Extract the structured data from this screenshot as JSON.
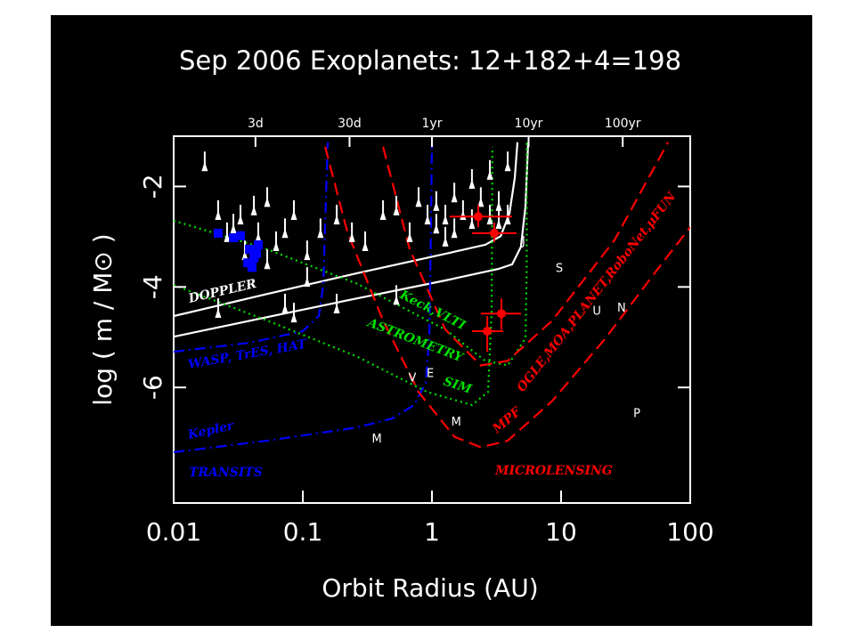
{
  "chart_data": {
    "type": "scatter",
    "title": "Sep 2006 Exoplanets: 12+182+4=198",
    "xlabel": "Orbit Radius (AU)",
    "ylabel": "log ( m / M⊙ )",
    "xscale": "log",
    "xlim": [
      0.01,
      100
    ],
    "ylim": [
      -8.3,
      -1
    ],
    "xticks": [
      0.01,
      0.1,
      1,
      10,
      100
    ],
    "yticks": [
      -2,
      -4,
      -6
    ],
    "x2ticks": [
      {
        "value": 0.043,
        "label": "3d"
      },
      {
        "value": 0.23,
        "label": "30d"
      },
      {
        "value": 1,
        "label": "1yr"
      },
      {
        "value": 5.6,
        "label": "10yr"
      },
      {
        "value": 30,
        "label": "100yr"
      }
    ],
    "curves": [
      {
        "color": "#ffffff",
        "style": "solid",
        "x": [
          0.01,
          0.053,
          0.26,
          1.27,
          2.59,
          3.4,
          3.98,
          4.38,
          4.59
        ],
        "y": [
          -4.58,
          -4.14,
          -3.73,
          -3.34,
          -3.16,
          -2.99,
          -2.54,
          -1.83,
          -1.12
        ]
      },
      {
        "color": "#ffffff",
        "style": "solid",
        "x": [
          0.01,
          0.053,
          0.26,
          1.27,
          3.29,
          4.18,
          4.89,
          5.3,
          5.56
        ],
        "y": [
          -4.99,
          -4.6,
          -4.23,
          -3.87,
          -3.64,
          -3.55,
          -3.2,
          -2.4,
          -1.12
        ]
      },
      {
        "color": "#0000ff",
        "style": "dashdot",
        "x": [
          0.01,
          0.0386,
          0.1,
          0.133,
          0.144,
          0.149,
          0.156
        ],
        "y": [
          -5.29,
          -5.11,
          -4.88,
          -4.58,
          -3.96,
          -2.72,
          -1.12
        ]
      },
      {
        "color": "#0000ff",
        "style": "dashdot",
        "x": [
          0.01,
          0.053,
          0.26,
          0.49,
          0.73,
          0.895,
          0.953,
          0.984,
          1
        ],
        "y": [
          -7.29,
          -7.06,
          -6.8,
          -6.62,
          -6.35,
          -5.91,
          -5.02,
          -2.72,
          -1.05
        ]
      },
      {
        "color": "#00e000",
        "style": "dotted",
        "x": [
          0.01,
          0.053,
          0.26,
          1.27,
          2.59,
          3.86,
          5.3,
          5.42,
          5.42
        ],
        "y": [
          -2.68,
          -3.25,
          -3.93,
          -4.85,
          -5.47,
          -5.56,
          -5.02,
          -3.61,
          -1.12
        ]
      },
      {
        "color": "#00e000",
        "style": "dotted",
        "x": [
          0.01,
          0.053,
          0.26,
          0.92,
          2.04,
          2.72,
          2.9,
          2.94
        ],
        "y": [
          -3.96,
          -4.67,
          -5.38,
          -6.09,
          -6.35,
          -6.09,
          -4.49,
          -1.21
        ]
      },
      {
        "color": "#ff0000",
        "style": "dashed",
        "x": [
          0.418,
          0.672,
          1.27,
          2.39,
          3.86,
          8.53,
          25.9,
          67.3
        ],
        "y": [
          -1.21,
          -3.25,
          -4.85,
          -5.56,
          -5.47,
          -4.67,
          -3.07,
          -1.12
        ]
      },
      {
        "color": "#ff0000",
        "style": "dashed",
        "x": [
          0.149,
          0.221,
          0.418,
          0.788,
          1.49,
          2.39,
          3.86,
          8.53,
          22.1,
          57.3,
          100
        ],
        "y": [
          -1.21,
          -2.9,
          -4.67,
          -6.09,
          -6.98,
          -7.19,
          -7.06,
          -6.27,
          -5.02,
          -3.61,
          -2.81
        ]
      }
    ],
    "series": [
      {
        "color": "#ffffff",
        "marker": "arrow",
        "x": [
          0.0174,
          0.0221,
          0.0259,
          0.029,
          0.0329,
          0.0356,
          0.0418,
          0.0452,
          0.053,
          0.053,
          0.0621,
          0.0728,
          0.0728,
          0.0853,
          0.0853,
          0.108,
          0.108,
          0.137,
          0.183,
          0.183,
          0.24,
          0.304,
          0.418,
          0.53,
          0.53,
          0.672,
          0.788,
          0.924,
          1.08,
          1.08,
          1.27,
          1.27,
          1.49,
          1.49,
          1.74,
          2.04,
          2.04,
          2.39,
          2.81,
          2.81,
          3.29,
          3.29,
          3.86,
          3.86,
          0.0221
        ],
        "y": [
          -1.66,
          -2.63,
          -3.07,
          -2.9,
          -2.72,
          -3.43,
          -2.54,
          -3.07,
          -2.37,
          -3.61,
          -3.25,
          -2.99,
          -4.49,
          -2.63,
          -4.67,
          -3.96,
          -3.43,
          -2.99,
          -4.49,
          -2.72,
          -3.07,
          -3.25,
          -2.63,
          -4.32,
          -2.54,
          -3.07,
          -2.37,
          -2.72,
          -2.9,
          -2.45,
          -2.72,
          -3.16,
          -2.28,
          -2.99,
          -2.63,
          -2.01,
          -2.81,
          -2.37,
          -1.83,
          -2.72,
          -2.45,
          -2.81,
          -1.66,
          -2.72,
          -4.58
        ]
      },
      {
        "color": "#0000ff",
        "marker": "square",
        "x": [
          0.0221,
          0.029,
          0.0329,
          0.0386,
          0.0418,
          0.0452,
          0.0374,
          0.0404,
          0.0438
        ],
        "y": [
          -2.93,
          -3.02,
          -2.98,
          -3.25,
          -3.43,
          -3.16,
          -3.52,
          -3.61,
          -3.34
        ]
      },
      {
        "color": "#ff0000",
        "marker": "errorbar",
        "x": [
          2.28,
          3.04,
          2.68,
          3.45
        ],
        "y": [
          -2.6,
          -2.93,
          -4.88,
          -4.53
        ],
        "x_low": [
          1.37,
          2.04,
          2.04,
          2.39
        ],
        "x_high": [
          4.18,
          4.52,
          3.56,
          4.89
        ],
        "y_low": [
          -2.81,
          -3.11,
          -5.29,
          -4.85
        ],
        "y_high": [
          -2.37,
          -2.72,
          -4.58,
          -4.23
        ]
      }
    ],
    "solar_system": {
      "color": "#ffffff",
      "labels": [
        "V",
        "E",
        "M",
        "M",
        "J",
        "S",
        "U",
        "N",
        "P"
      ],
      "x": [
        0.705,
        0.97,
        1.54,
        0.374,
        5.13,
        9.69,
        18.9,
        29.4,
        38.6
      ],
      "y": [
        -5.79,
        -5.7,
        -6.67,
        -7.01,
        -3.07,
        -3.61,
        -4.46,
        -4.4,
        -6.5
      ]
    },
    "annotations": [
      {
        "text": "DOPPLER",
        "color": "#ffffff"
      },
      {
        "text": "Keck,VLTI",
        "color": "#00e000"
      },
      {
        "text": "ASTROMETRY",
        "color": "#00e000"
      },
      {
        "text": "SIM",
        "color": "#00e000"
      },
      {
        "text": "WASP, TrES, HAT",
        "color": "#0000ff"
      },
      {
        "text": "Kepler",
        "color": "#0000ff"
      },
      {
        "text": "TRANSITS",
        "color": "#0000ff"
      },
      {
        "text": "MICROLENSING",
        "color": "#ff0000"
      },
      {
        "text": "MPF",
        "color": "#ff0000"
      },
      {
        "text": "OGLE,MOA,PLANET,RoboNet,μFUN",
        "color": "#ff0000"
      }
    ]
  }
}
